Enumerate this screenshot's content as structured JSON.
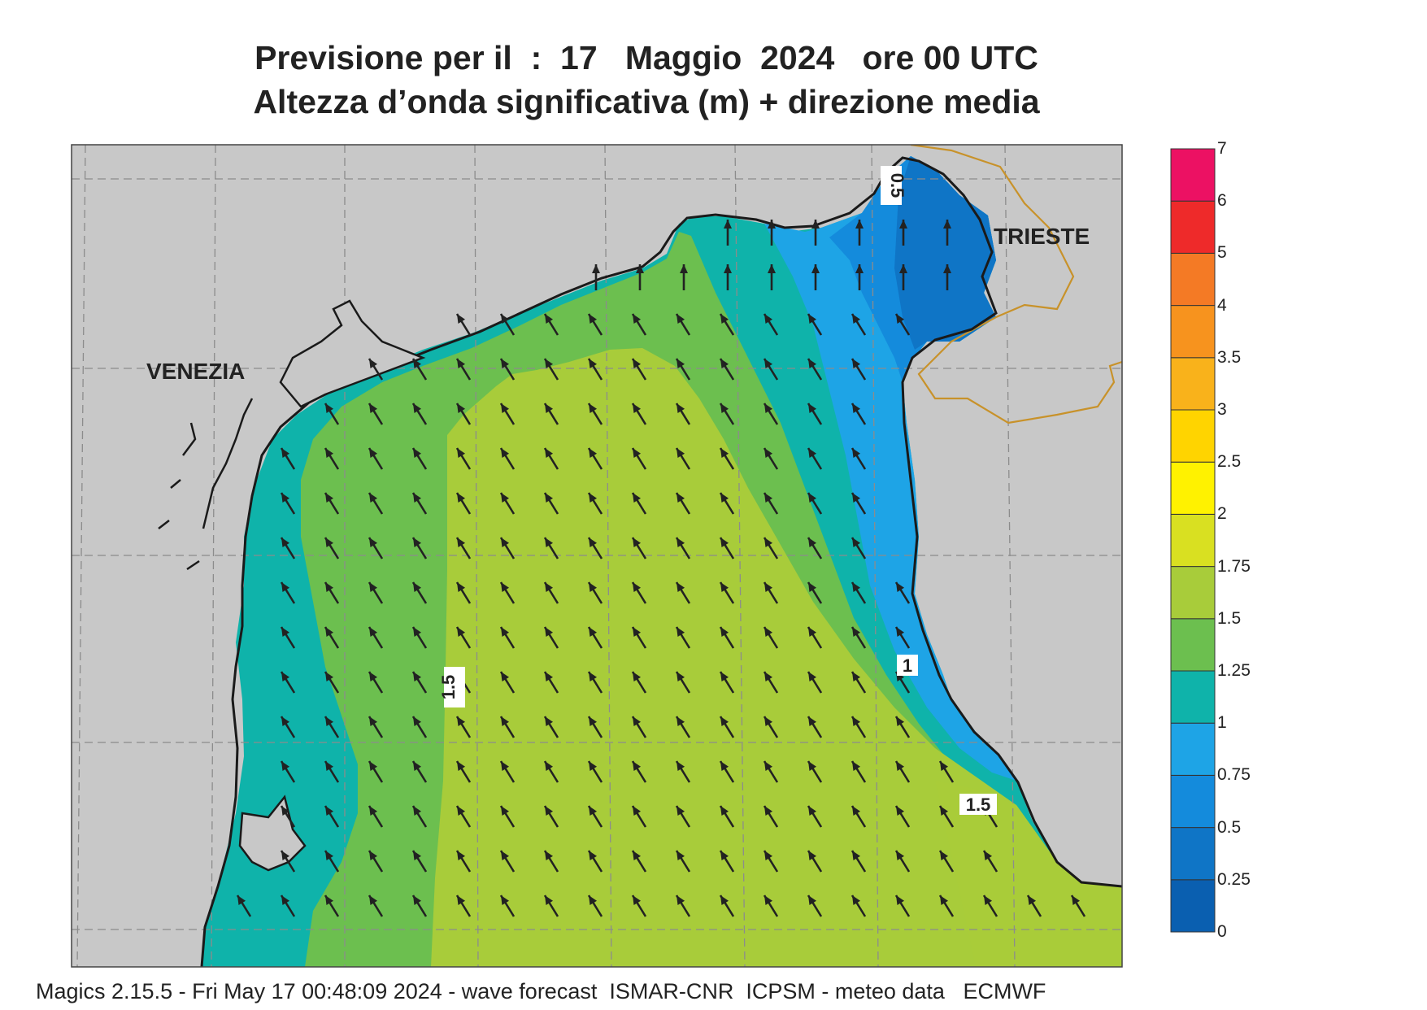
{
  "title": {
    "line1": "Previsione per il  :  17   Maggio  2024   ore 00 UTC",
    "line2": "Altezza d’onda significativa (m) + direzione media"
  },
  "places": [
    {
      "name": "VENEZIA"
    },
    {
      "name": "TRIESTE"
    }
  ],
  "contour_labels": [
    "0.5",
    "1",
    "1.5",
    "1.5"
  ],
  "colorbar": {
    "levels": [
      "0",
      "0.25",
      "0.5",
      "0.75",
      "1",
      "1.25",
      "1.5",
      "1.75",
      "2",
      "2.5",
      "3",
      "3.5",
      "4",
      "5",
      "6",
      "7"
    ],
    "colors": [
      "#0a5fb0",
      "#0f75c6",
      "#148bdc",
      "#1ea4e6",
      "#0fb3aa",
      "#6cbf4f",
      "#a8cc3a",
      "#d9e021",
      "#fff200",
      "#ffd400",
      "#f9b21b",
      "#f7931e",
      "#f47a25",
      "#ee2a2a",
      "#ec1163"
    ]
  },
  "footer": "Magics 2.15.5 - Fri May 17 00:48:09 2024 - wave forecast  ISMAR-CNR  ICPSM - meteo data   ECMWF",
  "colors": {
    "land": "#c8c8c8",
    "grid": "#8c8c8c",
    "border": "#c8922a",
    "arrow": "#222222"
  }
}
